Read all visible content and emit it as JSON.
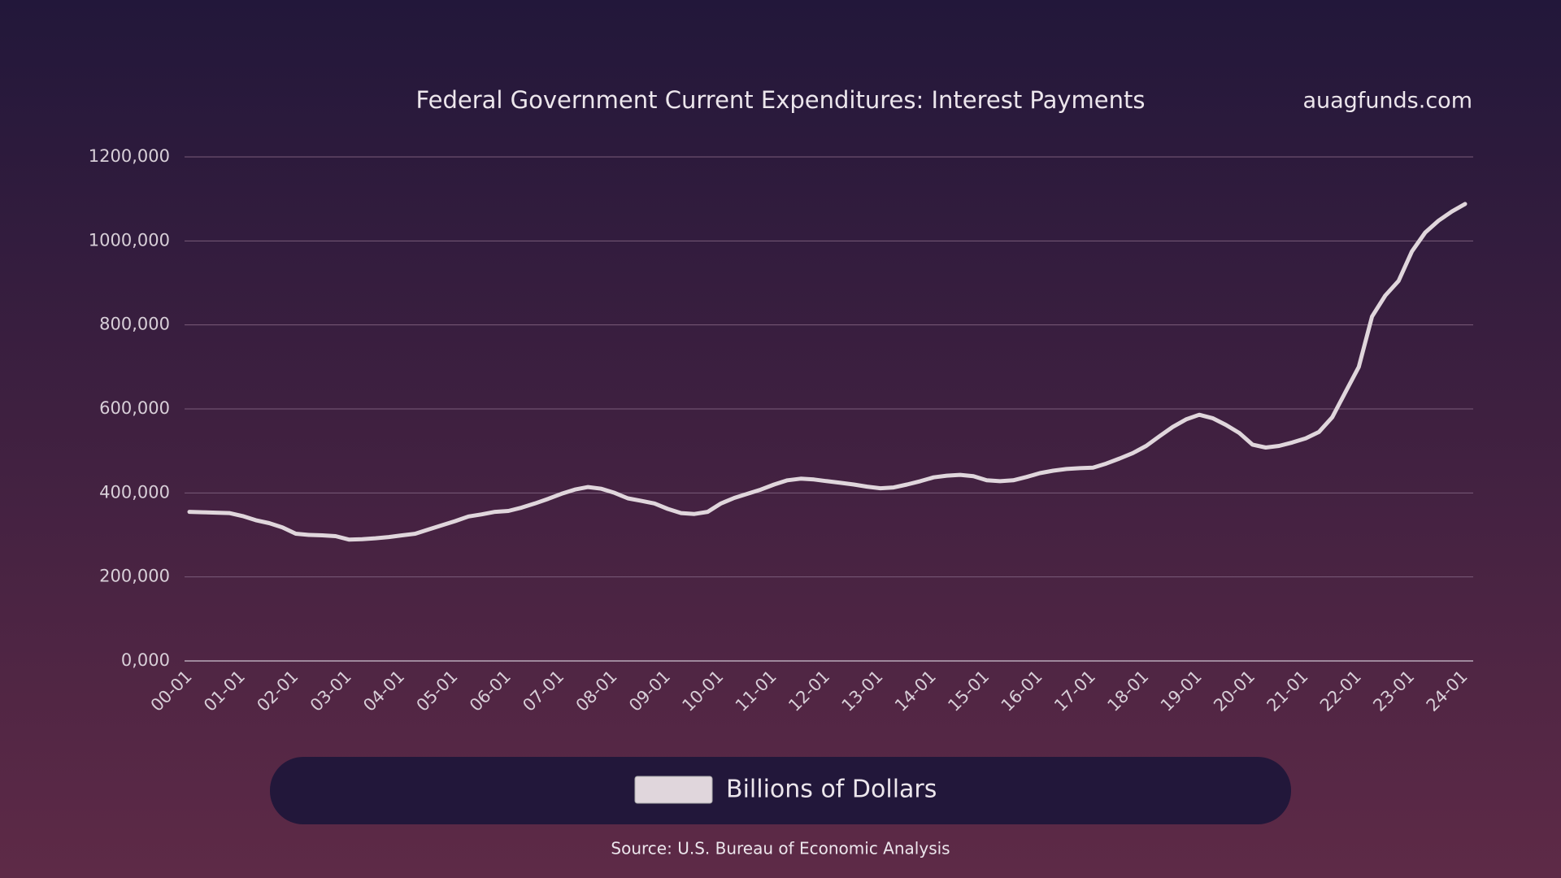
{
  "chart_data": {
    "type": "line",
    "title": "Federal Government Current Expenditures: Interest Payments",
    "watermark": "auagfunds.com",
    "source": "Source: U.S. Bureau of Economic Analysis",
    "categories": [
      "00-01",
      null,
      null,
      null,
      "01-01",
      null,
      null,
      null,
      "02-01",
      null,
      null,
      null,
      "03-01",
      null,
      null,
      null,
      "04-01",
      null,
      null,
      null,
      "05-01",
      null,
      null,
      null,
      "06-01",
      null,
      null,
      null,
      "07-01",
      null,
      null,
      null,
      "08-01",
      null,
      null,
      null,
      "09-01",
      null,
      null,
      null,
      "10-01",
      null,
      null,
      null,
      "11-01",
      null,
      null,
      null,
      "12-01",
      null,
      null,
      null,
      "13-01",
      null,
      null,
      null,
      "14-01",
      null,
      null,
      null,
      "15-01",
      null,
      null,
      null,
      "16-01",
      null,
      null,
      null,
      "17-01",
      null,
      null,
      null,
      "18-01",
      null,
      null,
      null,
      "19-01",
      null,
      null,
      null,
      "20-01",
      null,
      null,
      null,
      "21-01",
      null,
      null,
      null,
      "22-01",
      null,
      null,
      null,
      "23-01",
      null,
      null,
      null,
      "24-01"
    ],
    "series": [
      {
        "name": "Billions of Dollars",
        "color": "#e0d6dc",
        "values": [
          355000,
          354000,
          353000,
          352000,
          345000,
          335000,
          328000,
          318000,
          303000,
          300000,
          299000,
          297000,
          289000,
          290000,
          292000,
          295000,
          299000,
          303000,
          313000,
          323000,
          333000,
          344000,
          349000,
          355000,
          357000,
          365000,
          375000,
          386000,
          398000,
          408000,
          414000,
          410000,
          400000,
          387000,
          381000,
          375000,
          362000,
          352000,
          350000,
          355000,
          375000,
          388000,
          398000,
          408000,
          420000,
          430000,
          434000,
          432000,
          428000,
          424000,
          420000,
          415000,
          411000,
          413000,
          420000,
          428000,
          437000,
          441000,
          443000,
          440000,
          430000,
          428000,
          430000,
          438000,
          447000,
          453000,
          457000,
          459000,
          460000,
          470000,
          482000,
          495000,
          512000,
          535000,
          557000,
          575000,
          586000,
          578000,
          562000,
          543000,
          515000,
          508000,
          512000,
          520000,
          530000,
          545000,
          580000,
          640000,
          700000,
          820000,
          870000,
          905000,
          975000,
          1020000,
          1048000,
          1070000,
          1088000
        ]
      }
    ],
    "ylim": [
      0,
      1200000
    ],
    "yticks": [
      {
        "value": 0,
        "label": "0,000"
      },
      {
        "value": 200000,
        "label": "200,000"
      },
      {
        "value": 400000,
        "label": "400,000"
      },
      {
        "value": 600000,
        "label": "600,000"
      },
      {
        "value": 800000,
        "label": "800,000"
      },
      {
        "value": 1000000,
        "label": "1000,000"
      },
      {
        "value": 1200000,
        "label": "1200,000"
      }
    ],
    "grid": true
  }
}
